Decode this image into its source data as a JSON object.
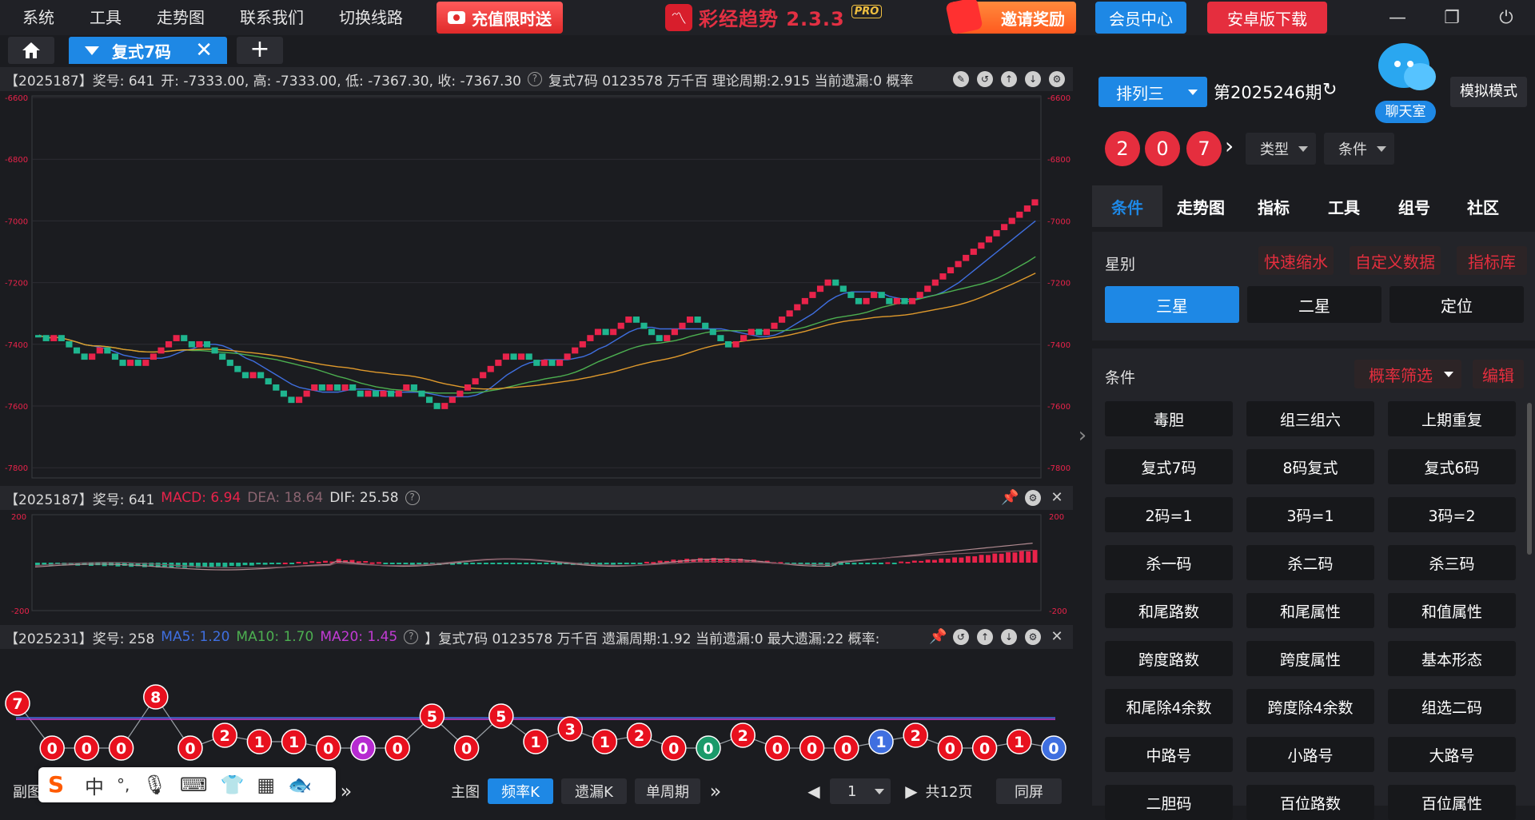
{
  "menu": {
    "items": [
      "系统",
      "工具",
      "走势图",
      "联系我们",
      "切换线路"
    ],
    "promo_label": "充值限时送"
  },
  "brand": {
    "name": "彩经趋势 2.3.3",
    "pro": "PRO"
  },
  "header": {
    "invite_label": "邀请奖励",
    "member_label": "会员中心",
    "android_label": "安卓版下载"
  },
  "tabs": {
    "active_label": "复式7码",
    "close": "✕",
    "add": "+"
  },
  "kline": {
    "info": {
      "period": "【2025187】奖号: 641",
      "ohlc": "开: -7333.00, 高: -7333.00, 低: -7367.30, 收: -7367.30",
      "fields": "复式7码  0123578  万千百  理论周期:2.915  当前遗漏:0  概率"
    },
    "y_ticks": [
      "-6600",
      "-6800",
      "-7000",
      "-7200",
      "-7400",
      "-7600",
      "-7800"
    ],
    "colors": {
      "up": "#e8234a",
      "down": "#1fb58f",
      "ma_blue": "#3f6fe0",
      "ma_green": "#4caf50",
      "ma_orange": "#e09a2c"
    }
  },
  "macd": {
    "info": {
      "period": "【2025187】奖号: 641",
      "macd": "MACD: 6.94",
      "dea": "DEA: 18.64",
      "dif": "DIF: 25.58"
    },
    "y_ticks": [
      "200",
      "-200"
    ]
  },
  "miss": {
    "info": {
      "period": "【2025231】奖号: 258",
      "ma5": "MA5: 1.20",
      "ma10": "MA10: 1.70",
      "ma20": "MA20: 1.45",
      "fields": "】复式7码  0123578  万千百  遗漏周期:1.92  当前遗漏:0  最大遗漏:22  概率:"
    },
    "values": [
      7,
      0,
      0,
      0,
      8,
      0,
      2,
      1,
      1,
      0,
      0,
      0,
      5,
      0,
      5,
      1,
      3,
      1,
      2,
      0,
      0,
      2,
      0,
      0,
      0,
      1,
      2,
      0,
      0,
      1,
      0
    ]
  },
  "bottom": {
    "sub_label": "副图",
    "main_label": "主图",
    "freq_k": "频率K",
    "miss_k": "遗漏K",
    "single": "单周期",
    "more": "»",
    "page": "1",
    "total": "共12页",
    "same_screen": "同屏"
  },
  "ime": {
    "mode": "中",
    "punct": "°,"
  },
  "right": {
    "lottery": "排列三",
    "period": "第2025246期",
    "chat_label": "聊天室",
    "simulate": "模拟模式",
    "draw_numbers": [
      "2",
      "0",
      "7"
    ],
    "type_label": "类型",
    "cond_label": "条件",
    "nav_tabs": [
      "条件",
      "走势图",
      "指标",
      "工具",
      "组号",
      "社区"
    ],
    "star_title": "星别",
    "star_links": [
      "快速缩水",
      "自定义数据",
      "指标库"
    ],
    "stars": [
      "三星",
      "二星",
      "定位"
    ],
    "cond_title": "条件",
    "filter_label": "概率筛选",
    "edit_label": "编辑",
    "conditions": [
      "毒胆",
      "组三组六",
      "上期重复",
      "复式7码",
      "8码复式",
      "复式6码",
      "2码=1",
      "3码=1",
      "3码=2",
      "杀一码",
      "杀二码",
      "杀三码",
      "和尾路数",
      "和尾属性",
      "和值属性",
      "跨度路数",
      "跨度属性",
      "基本形态",
      "和尾除4余数",
      "跨度除4余数",
      "组选二码",
      "中路号",
      "小路号",
      "大路号",
      "二胆码",
      "百位路数",
      "百位属性"
    ]
  }
}
